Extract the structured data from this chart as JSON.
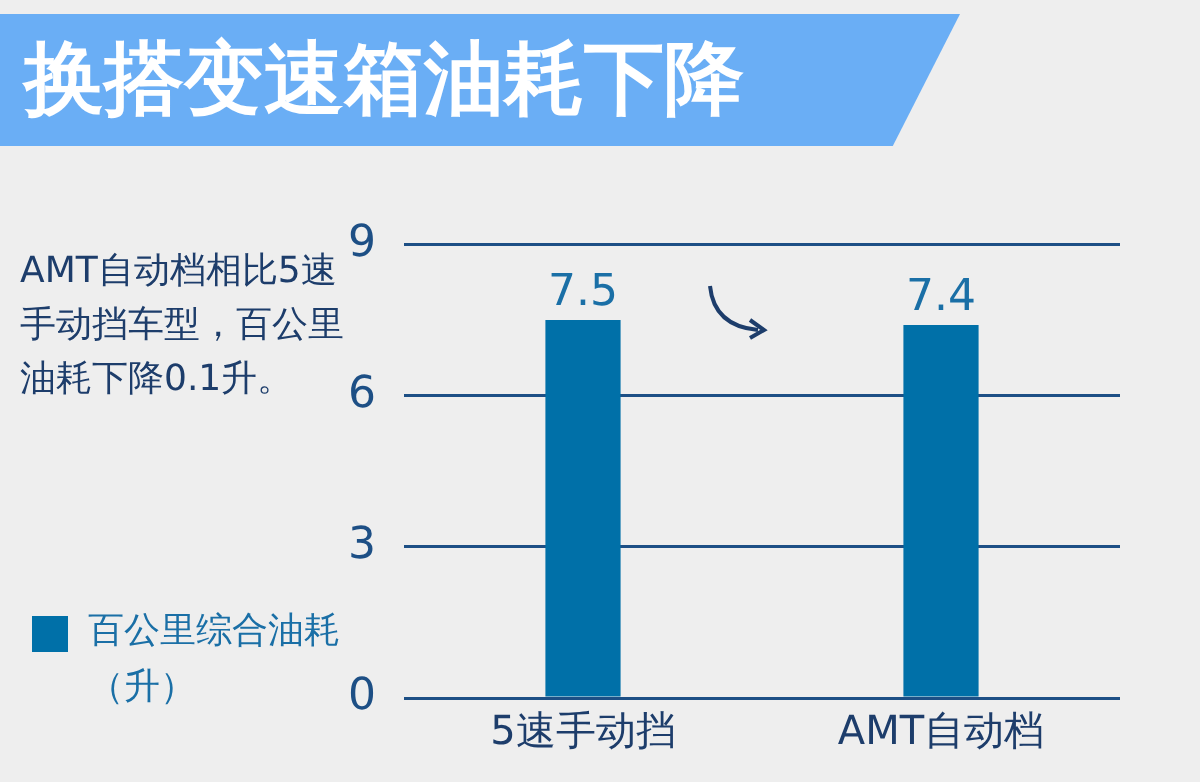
{
  "chart_data": {
    "type": "bar",
    "title": "换搭变速箱油耗下降",
    "annotations": [
      "AMT自动档相比5速手动挡车型，百公里油耗下降0.1升。"
    ],
    "categories": [
      "5速手动挡",
      "AMT自动档"
    ],
    "series": [
      {
        "name": "百公里综合油耗（升）",
        "color": "#0070a8",
        "values": [
          7.5,
          7.4
        ]
      }
    ],
    "ylim": [
      0,
      9
    ],
    "yticks": [
      0,
      3,
      6,
      9
    ],
    "grid": "y",
    "legend": "left",
    "data_labels": true
  }
}
